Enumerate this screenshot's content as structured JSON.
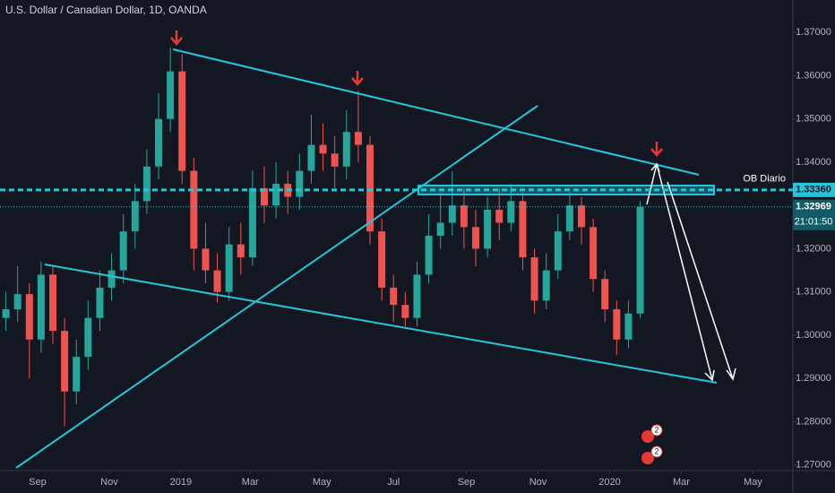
{
  "chart_data": {
    "type": "candlestick",
    "title": "U.S. Dollar / Canadian Dollar, 1D, OANDA",
    "x": [
      5,
      15,
      25,
      35,
      45,
      55,
      65,
      75,
      85,
      95,
      105,
      115,
      125,
      135,
      145,
      155,
      165,
      175,
      185,
      195,
      205,
      215,
      225,
      235,
      245,
      255,
      265,
      275,
      285,
      295,
      305,
      315,
      325,
      335,
      345,
      355,
      365,
      375,
      385,
      395,
      405,
      415,
      425,
      435,
      445,
      455,
      465,
      475,
      485,
      495,
      505,
      515,
      525,
      535,
      545
    ],
    "open": [
      1.304,
      1.306,
      1.3095,
      1.299,
      1.314,
      1.301,
      1.287,
      1.295,
      1.304,
      1.311,
      1.315,
      1.324,
      1.331,
      1.339,
      1.35,
      1.361,
      1.338,
      1.32,
      1.315,
      1.31,
      1.321,
      1.318,
      1.334,
      1.33,
      1.335,
      1.332,
      1.338,
      1.344,
      1.342,
      1.339,
      1.347,
      1.344,
      1.324,
      1.311,
      1.307,
      1.304,
      1.314,
      1.323,
      1.326,
      1.33,
      1.325,
      1.32,
      1.329,
      1.326,
      1.331,
      1.318,
      1.308,
      1.315,
      1.324,
      1.33,
      1.325,
      1.313,
      1.306,
      1.299,
      1.305
    ],
    "high": [
      1.31,
      1.316,
      1.312,
      1.317,
      1.316,
      1.304,
      1.299,
      1.308,
      1.315,
      1.319,
      1.328,
      1.335,
      1.343,
      1.356,
      1.3665,
      1.365,
      1.341,
      1.326,
      1.319,
      1.325,
      1.326,
      1.338,
      1.339,
      1.34,
      1.338,
      1.342,
      1.351,
      1.349,
      1.346,
      1.352,
      1.3565,
      1.346,
      1.327,
      1.314,
      1.31,
      1.317,
      1.328,
      1.333,
      1.338,
      1.334,
      1.329,
      1.332,
      1.334,
      1.335,
      1.333,
      1.32,
      1.319,
      1.328,
      1.333,
      1.332,
      1.327,
      1.315,
      1.308,
      1.308,
      1.331
    ],
    "low": [
      1.301,
      1.303,
      1.29,
      1.296,
      1.298,
      1.279,
      1.284,
      1.292,
      1.301,
      1.308,
      1.312,
      1.32,
      1.328,
      1.336,
      1.347,
      1.335,
      1.315,
      1.312,
      1.3075,
      1.308,
      1.314,
      1.316,
      1.326,
      1.327,
      1.328,
      1.329,
      1.335,
      1.338,
      1.334,
      1.336,
      1.34,
      1.321,
      1.308,
      1.303,
      1.302,
      1.302,
      1.312,
      1.32,
      1.323,
      1.32,
      1.316,
      1.318,
      1.322,
      1.324,
      1.315,
      1.305,
      1.306,
      1.313,
      1.322,
      1.321,
      1.31,
      1.303,
      1.2955,
      1.297,
      1.304
    ],
    "close": [
      1.306,
      1.3095,
      1.299,
      1.314,
      1.301,
      1.287,
      1.295,
      1.304,
      1.311,
      1.315,
      1.324,
      1.331,
      1.339,
      1.35,
      1.361,
      1.338,
      1.32,
      1.315,
      1.31,
      1.321,
      1.318,
      1.334,
      1.33,
      1.335,
      1.332,
      1.338,
      1.344,
      1.342,
      1.339,
      1.347,
      1.344,
      1.324,
      1.311,
      1.307,
      1.304,
      1.314,
      1.323,
      1.326,
      1.33,
      1.325,
      1.32,
      1.329,
      1.326,
      1.331,
      1.318,
      1.308,
      1.315,
      1.324,
      1.33,
      1.325,
      1.313,
      1.306,
      1.299,
      1.305,
      1.3297
    ],
    "up_color": "#26a69a",
    "down_color": "#ef5350",
    "xlim": [
      0,
      675
    ],
    "xticks": [
      {
        "value": 32,
        "label": "Sep"
      },
      {
        "value": 93,
        "label": "Nov"
      },
      {
        "value": 154,
        "label": "2019"
      },
      {
        "value": 213,
        "label": "Mar"
      },
      {
        "value": 274,
        "label": "May"
      },
      {
        "value": 335,
        "label": "Jul"
      },
      {
        "value": 397,
        "label": "Sep"
      },
      {
        "value": 458,
        "label": "Nov"
      },
      {
        "value": 519,
        "label": "2020"
      },
      {
        "value": 580,
        "label": "Mar"
      },
      {
        "value": 641,
        "label": "May"
      }
    ],
    "ylim": [
      1.2687,
      1.3775
    ],
    "yticks": [
      {
        "value": 1.27,
        "label": "1.27000"
      },
      {
        "value": 1.28,
        "label": "1.28000"
      },
      {
        "value": 1.29,
        "label": "1.29000"
      },
      {
        "value": 1.3,
        "label": "1.30000"
      },
      {
        "value": 1.31,
        "label": "1.31000"
      },
      {
        "value": 1.32,
        "label": "1.32000"
      },
      {
        "value": 1.33,
        "label": "1.33000"
      },
      {
        "value": 1.34,
        "label": "1.34000"
      },
      {
        "value": 1.35,
        "label": "1.35000"
      },
      {
        "value": 1.36,
        "label": "1.36000"
      },
      {
        "value": 1.37,
        "label": "1.37000"
      }
    ],
    "grid": false,
    "price_lines": [
      {
        "name": "OB Diario",
        "value": 1.3336,
        "value_label": "1.33360",
        "style": "dashed",
        "color": "#26c6da"
      },
      {
        "value": 1.32969,
        "value_label": "1.32969",
        "style": "dotted",
        "color": "#26c6da",
        "countdown": "21:01:50"
      }
    ],
    "events": [
      {
        "label": "2"
      },
      {
        "label": "2"
      }
    ]
  }
}
